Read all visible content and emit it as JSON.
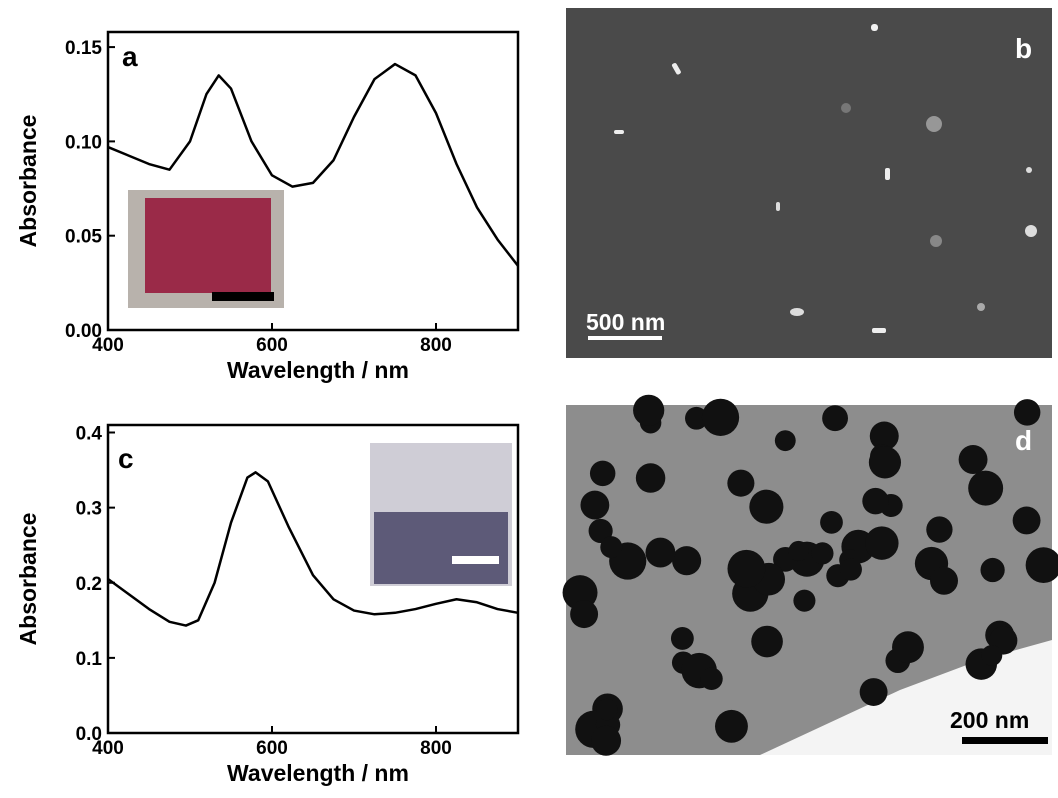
{
  "chart_data": [
    {
      "type": "line",
      "panel_label": "a",
      "xlabel": "Wavelength / nm",
      "ylabel": "Absorbance",
      "xlim": [
        400,
        900
      ],
      "xticks": [
        400,
        600,
        800
      ],
      "ylim": [
        0,
        0.158
      ],
      "yticks": [
        {
          "value": 0,
          "label": "0.00"
        },
        0.05,
        {
          "value": 0.1,
          "label": "0.10"
        },
        0.15
      ],
      "series": [
        {
          "color": "#000000",
          "x": [
            400,
            450,
            475,
            500,
            520,
            535,
            550,
            575,
            600,
            625,
            650,
            675,
            700,
            725,
            750,
            775,
            800,
            825,
            850,
            875,
            900
          ],
          "values": [
            0.097,
            0.088,
            0.085,
            0.1,
            0.125,
            0.135,
            0.128,
            0.1,
            0.082,
            0.076,
            0.078,
            0.09,
            0.113,
            0.133,
            0.141,
            0.135,
            0.115,
            0.088,
            0.065,
            0.048,
            0.034
          ]
        }
      ]
    },
    {
      "type": "line",
      "panel_label": "c",
      "xlabel": "Wavelength / nm",
      "ylabel": "Absorbance",
      "xlim": [
        400,
        900
      ],
      "xticks": [
        400,
        600,
        800
      ],
      "ylim": [
        0,
        0.41
      ],
      "yticks": [
        {
          "value": 0,
          "label": "0.0"
        },
        0.1,
        0.2,
        0.3,
        0.4
      ],
      "series": [
        {
          "color": "#000000",
          "x": [
            400,
            425,
            450,
            475,
            495,
            510,
            530,
            550,
            570,
            580,
            595,
            620,
            650,
            675,
            700,
            725,
            750,
            775,
            800,
            825,
            850,
            875,
            900
          ],
          "values": [
            0.205,
            0.185,
            0.165,
            0.148,
            0.143,
            0.15,
            0.2,
            0.28,
            0.34,
            0.347,
            0.335,
            0.275,
            0.21,
            0.178,
            0.163,
            0.158,
            0.16,
            0.165,
            0.172,
            0.178,
            0.174,
            0.165,
            0.16
          ]
        }
      ]
    }
  ],
  "images": [
    {
      "panel_label": "b",
      "scale_bar": "500 nm"
    },
    {
      "panel_label": "d",
      "scale_bar": "200 nm"
    }
  ]
}
